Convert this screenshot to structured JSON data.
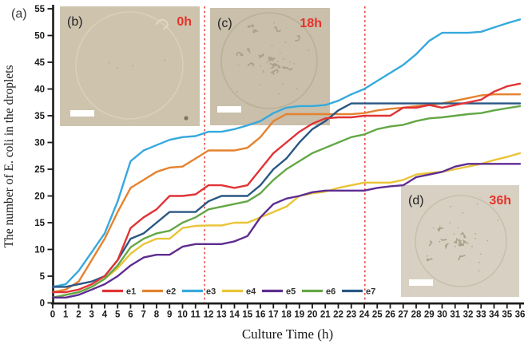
{
  "figure": {
    "panel_label": "(a)",
    "xlabel": "Culture Time (h)",
    "ylabel": "The number of E. coli in the droplets"
  },
  "axes": {
    "y_ticks": [
      0,
      5,
      10,
      15,
      20,
      25,
      30,
      35,
      40,
      45,
      50,
      55
    ],
    "x_ticks": [
      0,
      1,
      2,
      3,
      4,
      5,
      6,
      7,
      8,
      9,
      10,
      11,
      12,
      13,
      14,
      15,
      16,
      17,
      18,
      19,
      20,
      21,
      22,
      23,
      24,
      25,
      26,
      27,
      28,
      29,
      30,
      31,
      32,
      33,
      34,
      35,
      36
    ]
  },
  "insets": [
    {
      "id": "b",
      "label": "(b)",
      "time": "0h"
    },
    {
      "id": "c",
      "label": "(c)",
      "time": "18h"
    },
    {
      "id": "d",
      "label": "(d)",
      "time": "36h"
    }
  ],
  "colors": {
    "axis": "#1a1a1a",
    "dashed_line": "#e8473c",
    "inset_time": "#e8312a",
    "inset_label": "#222222"
  },
  "chart_data": {
    "type": "line",
    "title": "",
    "xlabel": "Culture Time (h)",
    "ylabel": "The number of E. coli in the droplets",
    "xlim": [
      0,
      36
    ],
    "ylim": [
      0,
      55
    ],
    "grid": false,
    "legend_position": "bottom-inside",
    "phase_lines_x": [
      11.7,
      24.05
    ],
    "x": [
      0,
      1,
      2,
      3,
      4,
      5,
      6,
      7,
      8,
      9,
      10,
      11,
      12,
      13,
      14,
      15,
      16,
      17,
      18,
      19,
      20,
      21,
      22,
      23,
      24,
      25,
      26,
      27,
      28,
      29,
      30,
      31,
      32,
      33,
      34,
      35,
      36
    ],
    "series": [
      {
        "name": "e1",
        "color": "#e13336",
        "values": [
          2,
          2,
          2.5,
          3.5,
          5,
          8,
          14,
          16,
          17.5,
          20,
          20,
          20.3,
          22,
          22,
          21.5,
          22,
          25,
          28,
          30,
          32,
          33.5,
          34.5,
          34.7,
          34.7,
          35,
          35,
          35,
          36.5,
          36.5,
          37,
          36.5,
          37,
          37.5,
          38,
          39.5,
          40.5,
          41
        ]
      },
      {
        "name": "e2",
        "color": "#e5822f",
        "values": [
          2,
          2.5,
          4,
          8,
          12,
          17,
          21.5,
          23,
          24.5,
          25.3,
          25.5,
          27,
          28.5,
          28.5,
          28.5,
          29,
          31,
          34,
          35.3,
          35.3,
          35.3,
          35.3,
          35.3,
          35.3,
          35.5,
          36,
          36.3,
          36.5,
          36.8,
          37,
          37.3,
          37.8,
          38.3,
          38.8,
          39,
          39,
          39
        ]
      },
      {
        "name": "e3",
        "color": "#36a9dd",
        "values": [
          3,
          3.5,
          6,
          9.5,
          13,
          19,
          26.5,
          28.5,
          29.5,
          30.5,
          31,
          31.2,
          32,
          32,
          32.5,
          33.2,
          34,
          35.5,
          36.5,
          36.8,
          36.8,
          37,
          37.8,
          39,
          40,
          41.5,
          43,
          44.5,
          46.5,
          49,
          50.5,
          50.5,
          50.5,
          50.7,
          51.5,
          52.3,
          53
        ]
      },
      {
        "name": "e4",
        "color": "#eac437",
        "values": [
          1,
          1.5,
          2,
          3,
          4.5,
          6.5,
          9.2,
          11,
          12,
          12,
          14,
          14.4,
          14.5,
          14.5,
          15,
          15,
          16,
          17,
          18,
          20,
          20.5,
          20.8,
          21.5,
          22,
          22.5,
          22.5,
          22.5,
          23,
          24,
          24.3,
          24.5,
          25,
          25.5,
          26,
          26.7,
          27.3,
          28
        ]
      },
      {
        "name": "e5",
        "color": "#5e2d91",
        "values": [
          1,
          1,
          1.5,
          2.5,
          3.5,
          5,
          7,
          8.5,
          9,
          9,
          10.5,
          11,
          11,
          11,
          11.5,
          12.5,
          16,
          18.5,
          19.5,
          20,
          20.7,
          21,
          21,
          21,
          21,
          21.5,
          21.8,
          22,
          23.5,
          24,
          24.5,
          25.5,
          26,
          26,
          26,
          26,
          26
        ]
      },
      {
        "name": "e6",
        "color": "#64a746",
        "values": [
          1,
          1.5,
          2,
          3,
          4.5,
          7,
          10.4,
          12,
          13,
          13.5,
          15,
          16,
          17.5,
          18,
          18.5,
          19,
          20.5,
          23,
          25,
          26.5,
          28,
          29,
          30,
          31,
          31.5,
          32.5,
          33,
          33.3,
          34,
          34.5,
          34.7,
          35,
          35.3,
          35.5,
          36,
          36.4,
          36.8
        ]
      },
      {
        "name": "e7",
        "color": "#2a5784",
        "values": [
          3,
          3,
          3.5,
          4,
          5,
          8,
          12,
          13,
          15,
          17,
          17,
          17,
          19,
          20,
          20,
          20,
          22,
          25,
          27,
          30,
          32.5,
          34,
          36,
          37.3,
          37.3,
          37.3,
          37.3,
          37.3,
          37.3,
          37.3,
          37.3,
          37.3,
          37.3,
          37.3,
          37.3,
          37.3,
          37.3
        ]
      }
    ]
  }
}
